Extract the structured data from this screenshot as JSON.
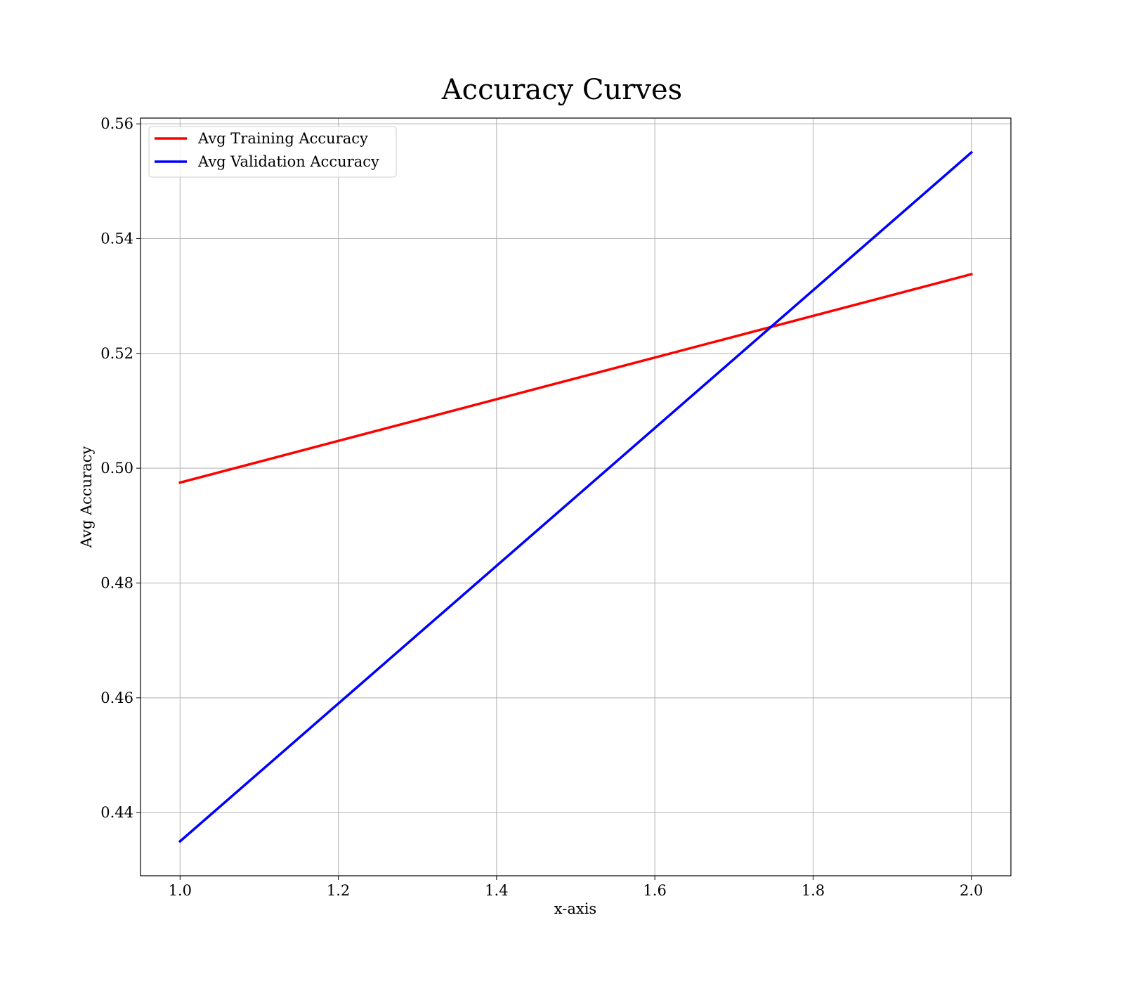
{
  "chart_data": {
    "type": "line",
    "title": "Accuracy Curves",
    "xlabel": "x-axis",
    "ylabel": "Avg Accuracy",
    "xlim": [
      0.95,
      2.05
    ],
    "ylim": [
      0.429,
      0.561
    ],
    "xticks": [
      1.0,
      1.2,
      1.4,
      1.6,
      1.8,
      2.0
    ],
    "xtick_labels": [
      "1.0",
      "1.2",
      "1.4",
      "1.6",
      "1.8",
      "2.0"
    ],
    "yticks": [
      0.44,
      0.46,
      0.48,
      0.5,
      0.52,
      0.54,
      0.56
    ],
    "ytick_labels": [
      "0.44",
      "0.46",
      "0.48",
      "0.50",
      "0.52",
      "0.54",
      "0.56"
    ],
    "grid": true,
    "legend_position": "top-left",
    "series": [
      {
        "name": "Avg Training Accuracy",
        "color": "#ff0000",
        "x": [
          1.0,
          2.0
        ],
        "y": [
          0.4975,
          0.5338
        ]
      },
      {
        "name": "Avg Validation Accuracy",
        "color": "#0000ff",
        "x": [
          1.0,
          2.0
        ],
        "y": [
          0.435,
          0.555
        ]
      }
    ]
  }
}
